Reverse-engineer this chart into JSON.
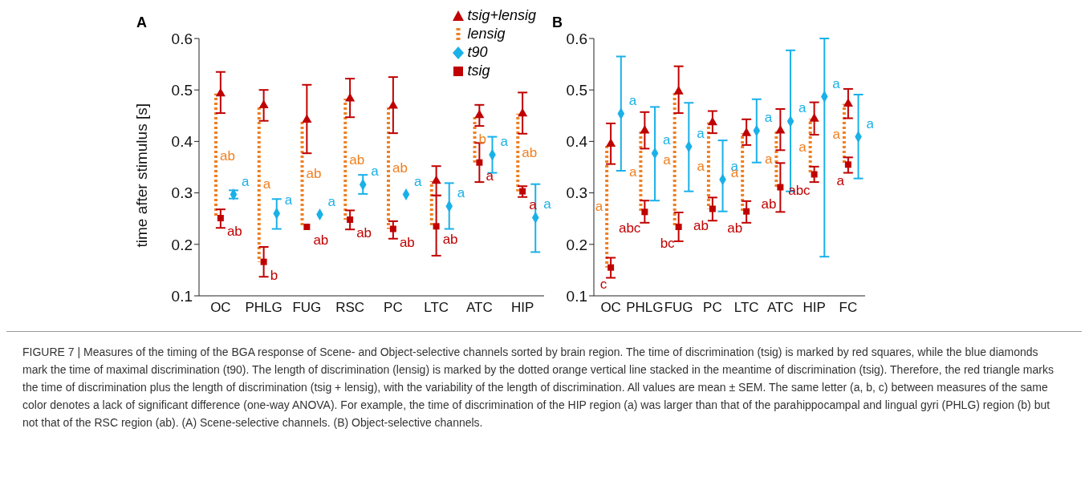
{
  "chart_data": [
    {
      "type": "scatter",
      "title": "A",
      "ylabel": "time after stimulus  [s]",
      "categories": [
        "OC",
        "PHLG",
        "FUG",
        "RSC",
        "PC",
        "LTC",
        "ATC",
        "HIP"
      ],
      "ylim": [
        0.1,
        0.6
      ],
      "yticks": [
        0.1,
        0.2,
        0.3,
        0.4,
        0.5,
        0.6
      ],
      "legend": "top right",
      "grid": false,
      "series": [
        {
          "name": "tsig+lensig",
          "type": "scatter",
          "marker": "triangle",
          "color": "#c00000",
          "values": [
            0.493,
            0.47,
            0.442,
            0.483,
            0.469,
            0.323,
            0.451,
            0.454
          ],
          "errors": [
            [
              0.455,
              0.535
            ],
            [
              0.44,
              0.5
            ],
            [
              0.377,
              0.51
            ],
            [
              0.447,
              0.522
            ],
            [
              0.416,
              0.525
            ],
            [
              0.295,
              0.352
            ],
            [
              0.43,
              0.471
            ],
            [
              0.415,
              0.495
            ]
          ]
        },
        {
          "name": "lensig",
          "type": "bar",
          "line_style": "dotted",
          "color": "#f07f20",
          "base": [
            0.251,
            0.166,
            0.234,
            0.248,
            0.23,
            0.235,
            0.359,
            0.303
          ],
          "values": [
            0.242,
            0.304,
            0.208,
            0.235,
            0.239,
            0.088,
            0.092,
            0.151
          ],
          "value_labels": [
            "ab",
            "a",
            "ab",
            "ab",
            "ab",
            null,
            "b",
            "ab"
          ]
        },
        {
          "name": "t90",
          "type": "scatter",
          "marker": "diamond",
          "color": "#1ab0e8",
          "values": [
            0.297,
            0.26,
            0.258,
            0.316,
            0.297,
            0.274,
            0.374,
            0.252
          ],
          "errors": [
            [
              0.289,
              0.305
            ],
            [
              0.23,
              0.288
            ],
            null,
            [
              0.298,
              0.335
            ],
            null,
            [
              0.23,
              0.319
            ],
            [
              0.339,
              0.409
            ],
            [
              0.185,
              0.317
            ]
          ],
          "value_labels": [
            "a",
            "a",
            "a",
            "a",
            "a",
            "a",
            "a",
            "a"
          ]
        },
        {
          "name": "tsig",
          "type": "scatter",
          "marker": "square",
          "color": "#c00000",
          "values": [
            0.251,
            0.166,
            0.234,
            0.248,
            0.23,
            0.235,
            0.359,
            0.303
          ],
          "errors": [
            [
              0.232,
              0.268
            ],
            [
              0.137,
              0.195
            ],
            null,
            [
              0.229,
              0.266
            ],
            [
              0.211,
              0.245
            ],
            [
              0.178,
              0.295
            ],
            [
              0.321,
              0.397
            ],
            [
              0.292,
              0.313
            ]
          ],
          "value_labels": [
            "ab",
            "b",
            "ab",
            "ab",
            "ab",
            "ab",
            "a",
            "a"
          ]
        }
      ],
      "annotations": [
        "FIGURE 7 | Measures of the timing of the BGA response of Scene- and Object-selective channels sorted by brain region. The time of discrimination (tsig) is marked by red squares, while the blue diamonds mark the time of maximal discrimination (t90). The length of discrimination (lensig) is marked by the dotted orange vertical line stacked in the meantime of discrimination (tsig). Therefore, the red triangle marks the time of discrimination plus the length of discrimination (tsig + lensig), with the variability of the length of discrimination. All values are mean ± SEM. The same letter (a, b, c) between measures of the same color denotes a lack of significant difference (one-way ANOVA). For example, the time of discrimination of the HIP region (a) was larger than that of the parahippocampal and lingual gyri (PHLG) region (b) but not that of the RSC region (ab). (A) Scene-selective channels. (B) Object-selective channels."
      ]
    },
    {
      "type": "scatter",
      "title": "B",
      "categories": [
        "OC",
        "PHLG",
        "FUG",
        "PC",
        "LTC",
        "ATC",
        "HIP",
        "FC"
      ],
      "ylim": [
        0.1,
        0.6
      ],
      "yticks": [
        0.1,
        0.2,
        0.3,
        0.4,
        0.5,
        0.6
      ],
      "grid": false,
      "series": [
        {
          "type": "scatter",
          "marker": "triangle",
          "color": "#c00000",
          "values": [
            0.395,
            0.421,
            0.497,
            0.437,
            0.416,
            0.421,
            0.444,
            0.473
          ],
          "errors": [
            [
              0.356,
              0.435
            ],
            [
              0.386,
              0.457
            ],
            [
              0.455,
              0.546
            ],
            [
              0.416,
              0.459
            ],
            [
              0.393,
              0.443
            ],
            [
              0.383,
              0.463
            ],
            [
              0.413,
              0.476
            ],
            [
              0.445,
              0.502
            ]
          ]
        },
        {
          "type": "bar",
          "line_style": "dotted",
          "color": "#f07f20",
          "base": [
            0.155,
            0.263,
            0.234,
            0.269,
            0.264,
            0.311,
            0.336,
            0.355
          ],
          "values": [
            0.24,
            0.158,
            0.263,
            0.168,
            0.152,
            0.11,
            0.108,
            0.118
          ],
          "value_labels": [
            "a",
            "a",
            "a",
            "a",
            "a",
            "a",
            "a",
            "a"
          ]
        },
        {
          "type": "scatter",
          "marker": "diamond",
          "color": "#1ab0e8",
          "values": [
            0.454,
            0.377,
            0.39,
            0.326,
            0.421,
            0.439,
            0.487,
            0.409
          ],
          "errors": [
            [
              0.343,
              0.565
            ],
            [
              0.285,
              0.467
            ],
            [
              0.303,
              0.475
            ],
            [
              0.264,
              0.402
            ],
            [
              0.359,
              0.482
            ],
            [
              0.303,
              0.577
            ],
            [
              0.176,
              0.6
            ],
            [
              0.328,
              0.491
            ]
          ],
          "value_labels": [
            "a",
            "a",
            "a",
            "a",
            "a",
            "a",
            "a",
            "a"
          ]
        },
        {
          "type": "scatter",
          "marker": "square",
          "color": "#c00000",
          "values": [
            0.155,
            0.263,
            0.234,
            0.269,
            0.264,
            0.311,
            0.336,
            0.355
          ],
          "errors": [
            [
              0.135,
              0.174
            ],
            [
              0.242,
              0.285
            ],
            [
              0.206,
              0.262
            ],
            [
              0.246,
              0.291
            ],
            [
              0.242,
              0.284
            ],
            [
              0.263,
              0.358
            ],
            [
              0.321,
              0.351
            ],
            [
              0.339,
              0.369
            ]
          ],
          "value_labels": [
            "c",
            "abc",
            "bc",
            "ab",
            "ab",
            "ab",
            "abc",
            "a"
          ]
        }
      ]
    }
  ]
}
